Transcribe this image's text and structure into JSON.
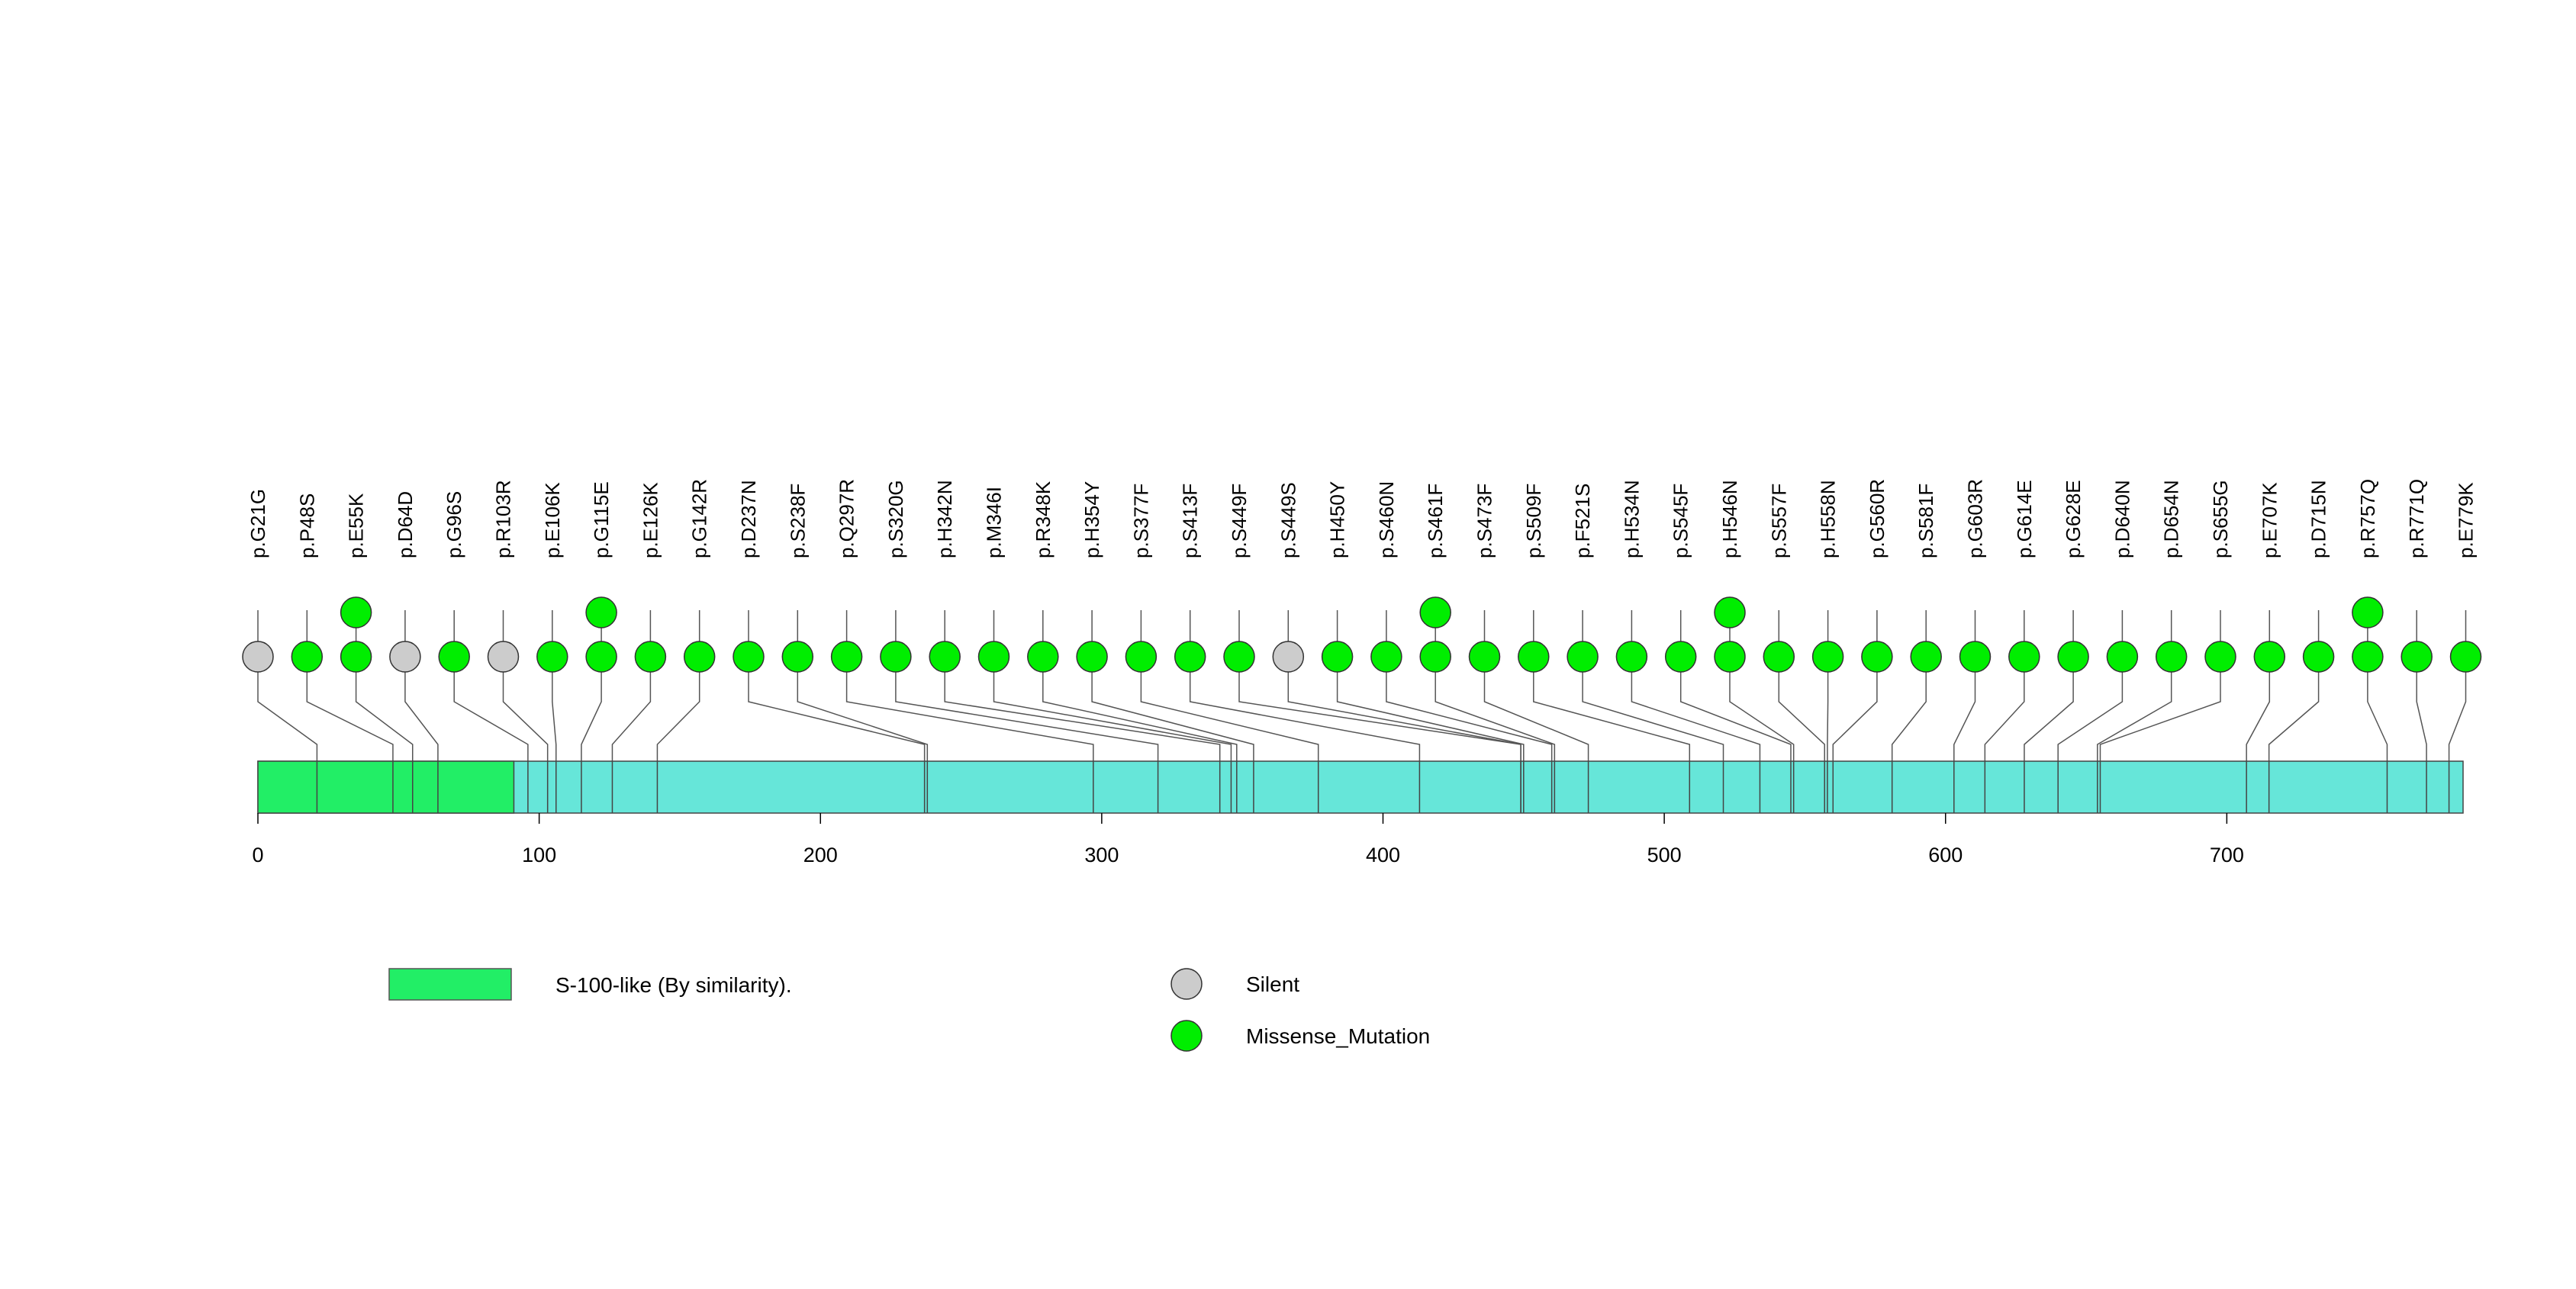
{
  "chart_data": {
    "type": "lollipop",
    "protein_length": 784,
    "xlim": [
      0,
      784
    ],
    "x_ticks": [
      0,
      100,
      200,
      300,
      400,
      500,
      600,
      700
    ],
    "domains": [
      {
        "name": "S-100-like (By similarity).",
        "start": 1,
        "end": 91,
        "color": "#22ee66"
      }
    ],
    "mutation_types": [
      {
        "name": "Silent",
        "color": "#cccccc"
      },
      {
        "name": "Missense_Mutation",
        "color": "#00ee00"
      }
    ],
    "mutations": [
      {
        "label": "p.G21G",
        "position": 21,
        "type": "Silent",
        "count": 1
      },
      {
        "label": "p.P48S",
        "position": 48,
        "type": "Missense_Mutation",
        "count": 1
      },
      {
        "label": "p.E55K",
        "position": 55,
        "type": "Missense_Mutation",
        "count": 2
      },
      {
        "label": "p.D64D",
        "position": 64,
        "type": "Silent",
        "count": 1
      },
      {
        "label": "p.G96S",
        "position": 96,
        "type": "Missense_Mutation",
        "count": 1
      },
      {
        "label": "p.R103R",
        "position": 103,
        "type": "Silent",
        "count": 1
      },
      {
        "label": "p.E106K",
        "position": 106,
        "type": "Missense_Mutation",
        "count": 1
      },
      {
        "label": "p.G115E",
        "position": 115,
        "type": "Missense_Mutation",
        "count": 2
      },
      {
        "label": "p.E126K",
        "position": 126,
        "type": "Missense_Mutation",
        "count": 1
      },
      {
        "label": "p.G142R",
        "position": 142,
        "type": "Missense_Mutation",
        "count": 1
      },
      {
        "label": "p.D237N",
        "position": 237,
        "type": "Missense_Mutation",
        "count": 1
      },
      {
        "label": "p.S238F",
        "position": 238,
        "type": "Missense_Mutation",
        "count": 1
      },
      {
        "label": "p.Q297R",
        "position": 297,
        "type": "Missense_Mutation",
        "count": 1
      },
      {
        "label": "p.S320G",
        "position": 320,
        "type": "Missense_Mutation",
        "count": 1
      },
      {
        "label": "p.H342N",
        "position": 342,
        "type": "Missense_Mutation",
        "count": 1
      },
      {
        "label": "p.M346I",
        "position": 346,
        "type": "Missense_Mutation",
        "count": 1
      },
      {
        "label": "p.R348K",
        "position": 348,
        "type": "Missense_Mutation",
        "count": 1
      },
      {
        "label": "p.H354Y",
        "position": 354,
        "type": "Missense_Mutation",
        "count": 1
      },
      {
        "label": "p.S377F",
        "position": 377,
        "type": "Missense_Mutation",
        "count": 1
      },
      {
        "label": "p.S413F",
        "position": 413,
        "type": "Missense_Mutation",
        "count": 1
      },
      {
        "label": "p.S449F",
        "position": 449,
        "type": "Missense_Mutation",
        "count": 1
      },
      {
        "label": "p.S449S",
        "position": 449,
        "type": "Silent",
        "count": 1
      },
      {
        "label": "p.H450Y",
        "position": 450,
        "type": "Missense_Mutation",
        "count": 1
      },
      {
        "label": "p.S460N",
        "position": 460,
        "type": "Missense_Mutation",
        "count": 1
      },
      {
        "label": "p.S461F",
        "position": 461,
        "type": "Missense_Mutation",
        "count": 2
      },
      {
        "label": "p.S473F",
        "position": 473,
        "type": "Missense_Mutation",
        "count": 1
      },
      {
        "label": "p.S509F",
        "position": 509,
        "type": "Missense_Mutation",
        "count": 1
      },
      {
        "label": "p.F521S",
        "position": 521,
        "type": "Missense_Mutation",
        "count": 1
      },
      {
        "label": "p.H534N",
        "position": 534,
        "type": "Missense_Mutation",
        "count": 1
      },
      {
        "label": "p.S545F",
        "position": 545,
        "type": "Missense_Mutation",
        "count": 1
      },
      {
        "label": "p.H546N",
        "position": 546,
        "type": "Missense_Mutation",
        "count": 2
      },
      {
        "label": "p.S557F",
        "position": 557,
        "type": "Missense_Mutation",
        "count": 1
      },
      {
        "label": "p.H558N",
        "position": 558,
        "type": "Missense_Mutation",
        "count": 1
      },
      {
        "label": "p.G560R",
        "position": 560,
        "type": "Missense_Mutation",
        "count": 1
      },
      {
        "label": "p.S581F",
        "position": 581,
        "type": "Missense_Mutation",
        "count": 1
      },
      {
        "label": "p.G603R",
        "position": 603,
        "type": "Missense_Mutation",
        "count": 1
      },
      {
        "label": "p.G614E",
        "position": 614,
        "type": "Missense_Mutation",
        "count": 1
      },
      {
        "label": "p.G628E",
        "position": 628,
        "type": "Missense_Mutation",
        "count": 1
      },
      {
        "label": "p.D640N",
        "position": 640,
        "type": "Missense_Mutation",
        "count": 1
      },
      {
        "label": "p.D654N",
        "position": 654,
        "type": "Missense_Mutation",
        "count": 1
      },
      {
        "label": "p.S655G",
        "position": 655,
        "type": "Missense_Mutation",
        "count": 1
      },
      {
        "label": "p.E707K",
        "position": 707,
        "type": "Missense_Mutation",
        "count": 1
      },
      {
        "label": "p.D715N",
        "position": 715,
        "type": "Missense_Mutation",
        "count": 1
      },
      {
        "label": "p.R757Q",
        "position": 757,
        "type": "Missense_Mutation",
        "count": 2
      },
      {
        "label": "p.R771Q",
        "position": 771,
        "type": "Missense_Mutation",
        "count": 1
      },
      {
        "label": "p.E779K",
        "position": 779,
        "type": "Missense_Mutation",
        "count": 1
      }
    ],
    "protein_color": "#66e6d9",
    "grid": false,
    "legend_placement": "bottom"
  }
}
